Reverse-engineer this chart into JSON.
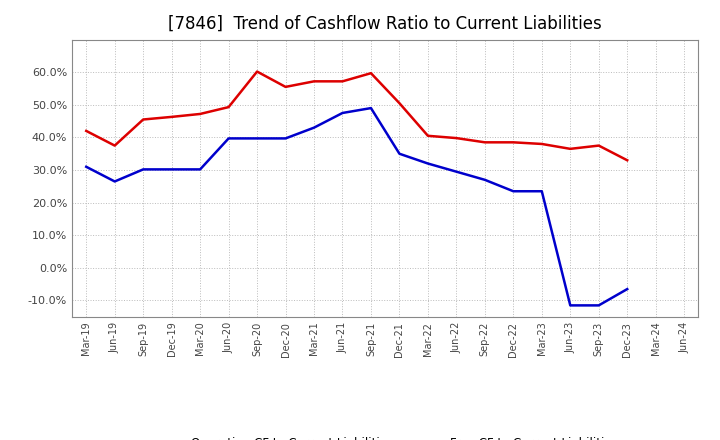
{
  "title": "[7846]  Trend of Cashflow Ratio to Current Liabilities",
  "x_labels": [
    "Mar-19",
    "Jun-19",
    "Sep-19",
    "Dec-19",
    "Mar-20",
    "Jun-20",
    "Sep-20",
    "Dec-20",
    "Mar-21",
    "Jun-21",
    "Sep-21",
    "Dec-21",
    "Mar-22",
    "Jun-22",
    "Sep-22",
    "Dec-22",
    "Mar-23",
    "Jun-23",
    "Sep-23",
    "Dec-23",
    "Mar-24",
    "Jun-24"
  ],
  "operating_cf": [
    0.42,
    0.375,
    0.455,
    0.463,
    0.472,
    0.493,
    0.602,
    0.555,
    0.572,
    0.572,
    0.597,
    0.505,
    0.405,
    0.398,
    0.385,
    0.385,
    0.38,
    0.365,
    0.375,
    0.33,
    null,
    null
  ],
  "free_cf": [
    0.31,
    0.265,
    0.302,
    0.302,
    0.302,
    0.397,
    0.397,
    0.397,
    0.43,
    0.475,
    0.49,
    0.35,
    0.32,
    0.295,
    0.27,
    0.235,
    0.235,
    -0.115,
    -0.115,
    -0.065,
    null,
    null
  ],
  "operating_cf_color": "#dd0000",
  "free_cf_color": "#0000cc",
  "ylim": [
    -0.15,
    0.7
  ],
  "yticks": [
    -0.1,
    0.0,
    0.1,
    0.2,
    0.3,
    0.4,
    0.5,
    0.6
  ],
  "background_color": "#ffffff",
  "grid_color": "#bbbbbb",
  "title_fontsize": 12
}
